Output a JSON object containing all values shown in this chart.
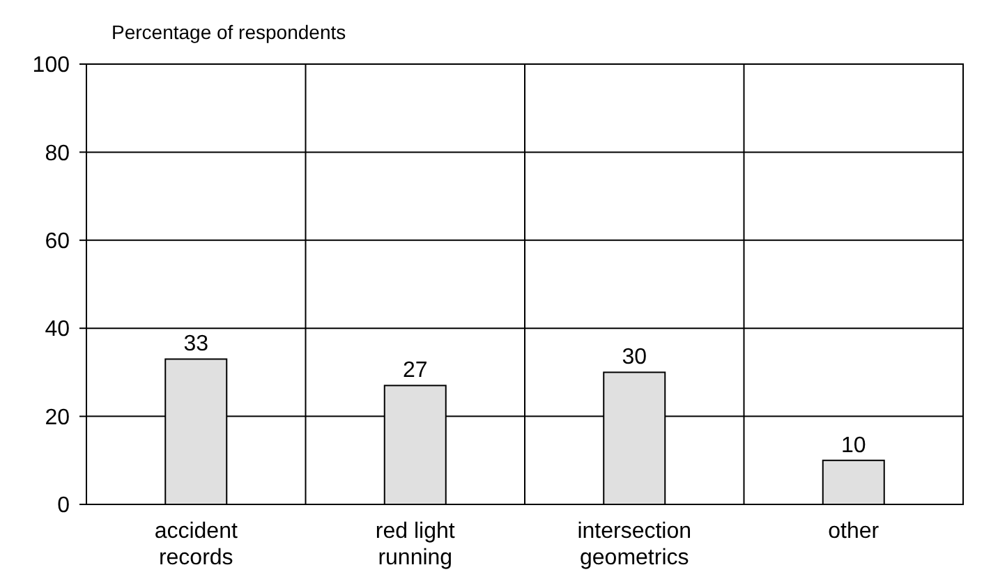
{
  "chart_data": {
    "type": "bar",
    "ylabel": "Percentage of respondents",
    "categories": [
      "accident records",
      "red light running",
      "intersection geometrics",
      "other"
    ],
    "values": [
      33,
      27,
      30,
      10
    ],
    "color": "#e0e0e0",
    "ylim": [
      0,
      100
    ],
    "yticks": [
      0,
      20,
      40,
      60,
      80,
      100
    ],
    "grid": true,
    "data_labels": true
  }
}
